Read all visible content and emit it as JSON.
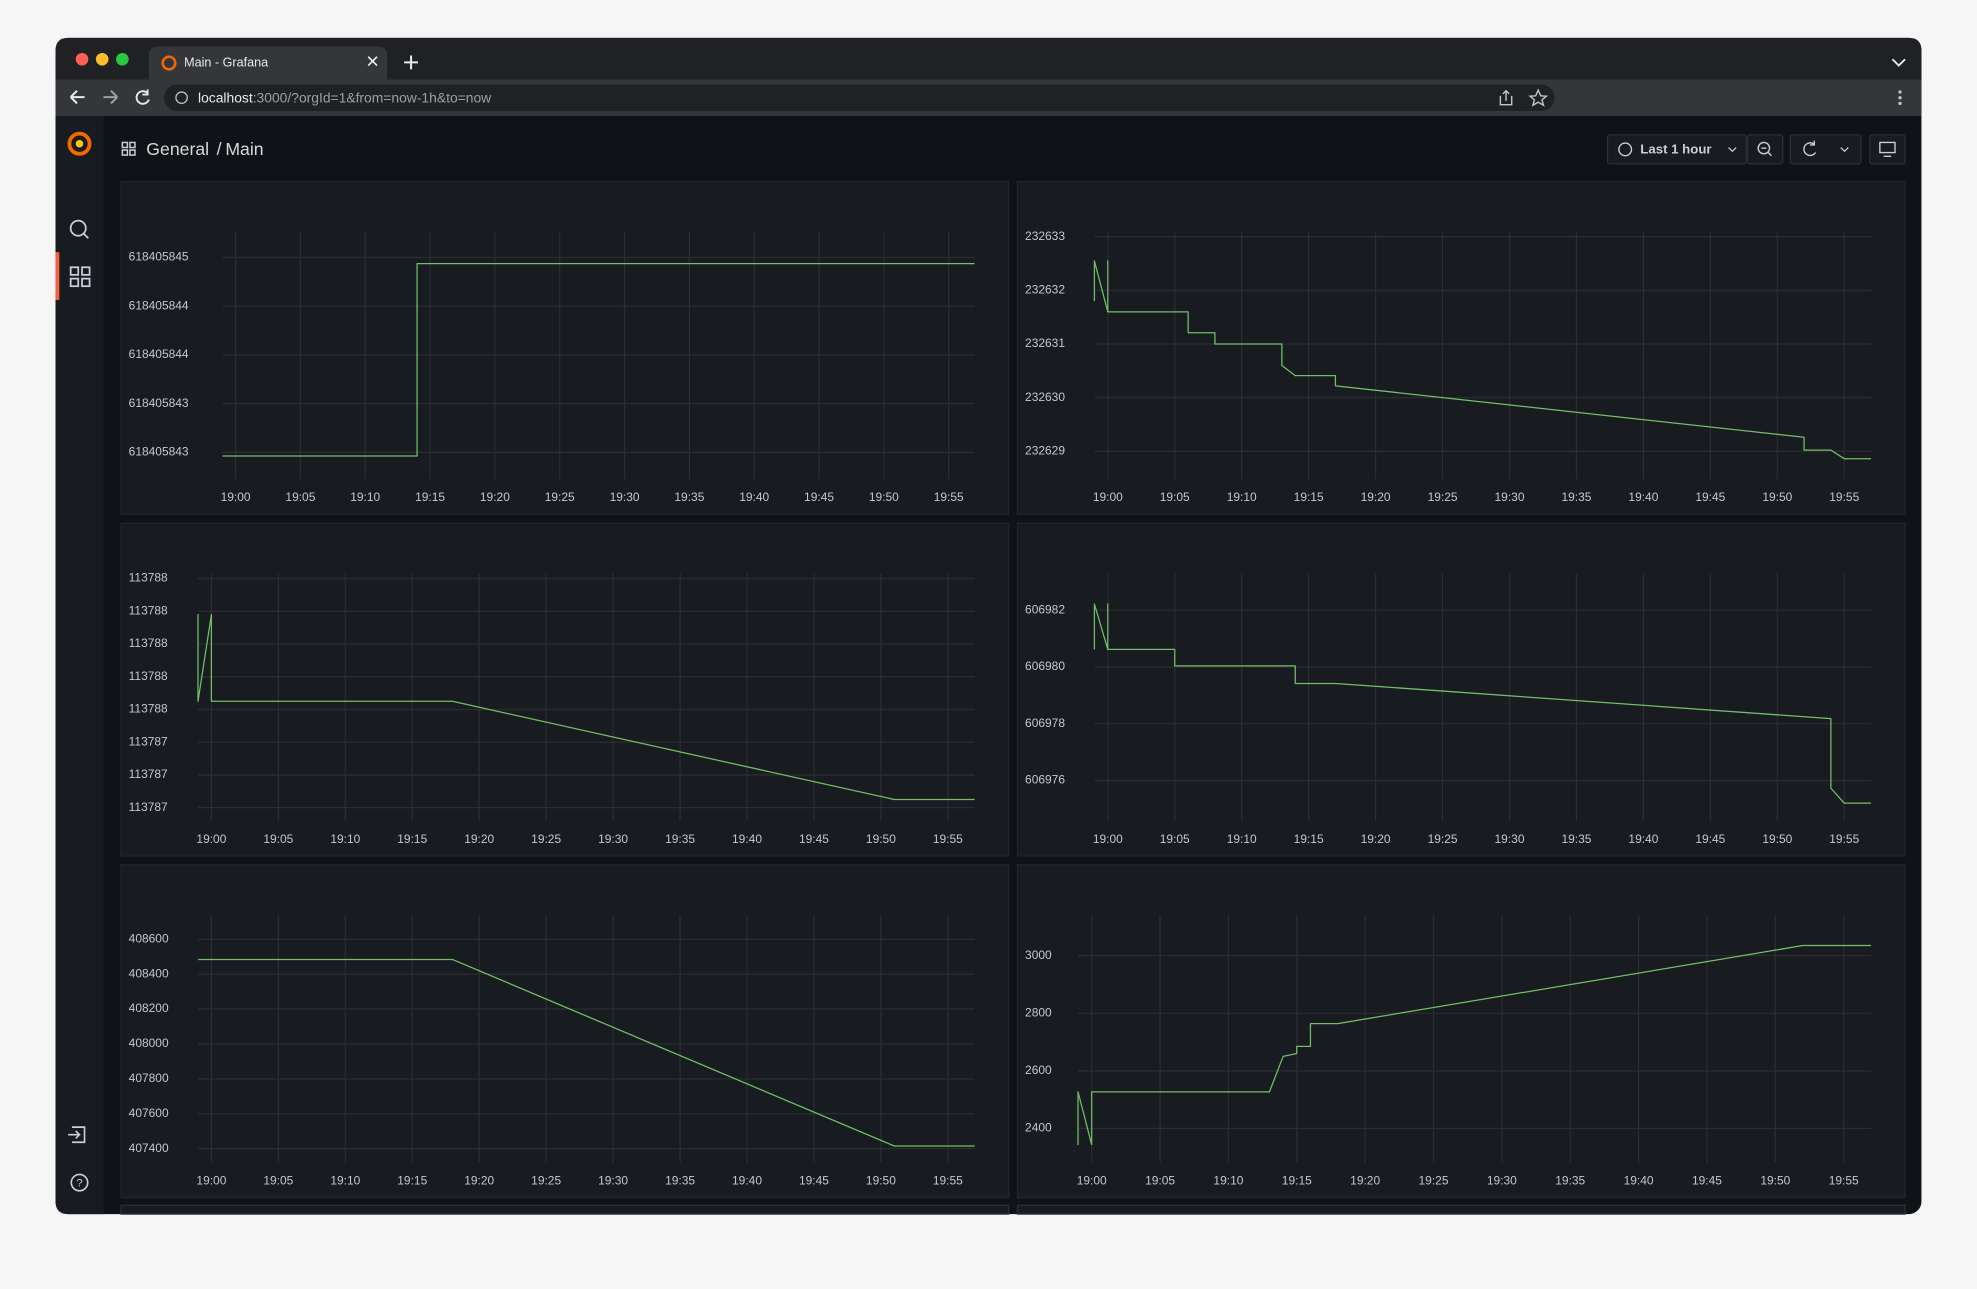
{
  "browser": {
    "tab_title": "Main - Grafana",
    "url_host": "localhost",
    "url_path": ":3000/?orgId=1&from=now-1h&to=now"
  },
  "header": {
    "folder": "General",
    "separator": "/",
    "dashboard": "Main",
    "time_range": "Last 1 hour"
  },
  "chart_data": [
    {
      "type": "line",
      "color": "#73bf69",
      "grid": true,
      "x": [
        "18:59",
        "19:14",
        "19:14",
        "19:57"
      ],
      "values": [
        618405842.87,
        618405842.87,
        618405844.45,
        618405844.45
      ],
      "xlim": [
        "18:59",
        "19:57"
      ],
      "ylim": [
        618405842.68,
        618405844.71
      ],
      "xticks": [
        "19:00",
        "19:05",
        "19:10",
        "19:15",
        "19:20",
        "19:25",
        "19:30",
        "19:35",
        "19:40",
        "19:45",
        "19:50",
        "19:55"
      ],
      "yticks": [
        {
          "value": 618405844.5,
          "label": "618405845"
        },
        {
          "value": 618405844.1,
          "label": "618405844"
        },
        {
          "value": 618405843.7,
          "label": "618405844"
        },
        {
          "value": 618405843.3,
          "label": "618405843"
        },
        {
          "value": 618405842.9,
          "label": "618405843"
        }
      ]
    },
    {
      "type": "line",
      "color": "#73bf69",
      "grid": true,
      "x": [
        "18:59",
        "18:59",
        "19:00",
        "19:00",
        "19:00",
        "19:06",
        "19:06",
        "19:08",
        "19:08",
        "19:13",
        "19:13",
        "19:14",
        "19:17",
        "19:17",
        "19:52",
        "19:52",
        "19:54",
        "19:55",
        "19:57"
      ],
      "values": [
        232631.8,
        232632.55,
        232631.6,
        232632.55,
        232631.6,
        232631.6,
        232631.21,
        232631.21,
        232631.0,
        232631.0,
        232630.6,
        232630.41,
        232630.41,
        232630.22,
        232629.26,
        232629.02,
        232629.02,
        232628.86,
        232628.86
      ],
      "xlim": [
        "18:59",
        "19:57"
      ],
      "ylim": [
        232628.48,
        232633.09
      ],
      "xticks": [
        "19:00",
        "19:05",
        "19:10",
        "19:15",
        "19:20",
        "19:25",
        "19:30",
        "19:35",
        "19:40",
        "19:45",
        "19:50",
        "19:55"
      ],
      "yticks": [
        232633,
        232632,
        232631,
        232630,
        232629
      ]
    },
    {
      "type": "line",
      "color": "#73bf69",
      "grid": true,
      "x": [
        "18:59",
        "18:59",
        "18:59",
        "19:00",
        "19:00",
        "19:18",
        "19:51",
        "19:57"
      ],
      "values": [
        113787.65,
        113788.18,
        113787.65,
        113788.18,
        113787.65,
        113787.65,
        113787.05,
        113787.05
      ],
      "xlim": [
        "18:59",
        "19:57"
      ],
      "ylim": [
        113786.92,
        113788.43
      ],
      "xticks": [
        "19:00",
        "19:05",
        "19:10",
        "19:15",
        "19:20",
        "19:25",
        "19:30",
        "19:35",
        "19:40",
        "19:45",
        "19:50",
        "19:55"
      ],
      "yticks": [
        {
          "value": 113788.4,
          "label": "113788"
        },
        {
          "value": 113788.2,
          "label": "113788"
        },
        {
          "value": 113788.0,
          "label": "113788"
        },
        {
          "value": 113787.8,
          "label": "113788"
        },
        {
          "value": 113787.6,
          "label": "113788"
        },
        {
          "value": 113787.4,
          "label": "113787"
        },
        {
          "value": 113787.2,
          "label": "113787"
        },
        {
          "value": 113787.0,
          "label": "113787"
        }
      ]
    },
    {
      "type": "line",
      "color": "#73bf69",
      "grid": true,
      "x": [
        "18:59",
        "18:59",
        "19:00",
        "19:00",
        "19:00",
        "19:05",
        "19:05",
        "19:14",
        "19:14",
        "19:17",
        "19:54",
        "19:54",
        "19:55",
        "19:57"
      ],
      "values": [
        606980.62,
        606982.22,
        606980.62,
        606982.22,
        606980.62,
        606980.62,
        606980.04,
        606980.04,
        606979.42,
        606979.42,
        606978.18,
        606975.73,
        606975.2,
        606975.2
      ],
      "xlim": [
        "18:59",
        "19:57"
      ],
      "ylim": [
        606974.58,
        606983.29
      ],
      "xticks": [
        "19:00",
        "19:05",
        "19:10",
        "19:15",
        "19:20",
        "19:25",
        "19:30",
        "19:35",
        "19:40",
        "19:45",
        "19:50",
        "19:55"
      ],
      "yticks": [
        606982,
        606980,
        606978,
        606976
      ]
    },
    {
      "type": "line",
      "color": "#73bf69",
      "grid": true,
      "x": [
        "18:59",
        "19:18",
        "19:51",
        "19:57"
      ],
      "values": [
        408484,
        408484,
        407415,
        407415
      ],
      "xlim": [
        "18:59",
        "19:57"
      ],
      "ylim": [
        407321,
        408737
      ],
      "xticks": [
        "19:00",
        "19:05",
        "19:10",
        "19:15",
        "19:20",
        "19:25",
        "19:30",
        "19:35",
        "19:40",
        "19:45",
        "19:50",
        "19:55"
      ],
      "yticks": [
        408600,
        408400,
        408200,
        408000,
        407800,
        407600,
        407400
      ]
    },
    {
      "type": "line",
      "color": "#73bf69",
      "grid": true,
      "x": [
        "18:59",
        "18:59",
        "18:59",
        "19:00",
        "19:00",
        "19:13",
        "19:14",
        "19:15",
        "19:15",
        "19:16",
        "19:16",
        "19:18",
        "19:52",
        "19:57"
      ],
      "values": [
        2527,
        2344,
        2527,
        2344,
        2527,
        2527,
        2650,
        2660,
        2685,
        2685,
        2764,
        2764,
        3035,
        3035
      ],
      "xlim": [
        "18:59",
        "19:57"
      ],
      "ylim": [
        2282,
        3140
      ],
      "xticks": [
        "19:00",
        "19:05",
        "19:10",
        "19:15",
        "19:20",
        "19:25",
        "19:30",
        "19:35",
        "19:40",
        "19:45",
        "19:50",
        "19:55"
      ],
      "yticks": [
        3000,
        2800,
        2600,
        2400
      ]
    }
  ]
}
